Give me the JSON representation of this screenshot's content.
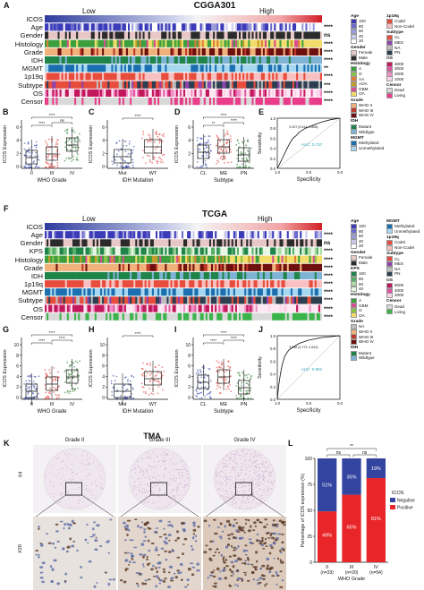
{
  "top": {
    "letter": "A",
    "title": "CGGA301",
    "low": "Low",
    "high": "High",
    "rows": [
      "ICOS",
      "Age",
      "Gender",
      "Histology",
      "Grade",
      "IDH",
      "MGMT",
      "1p19q",
      "Subtype",
      "OS",
      "Censor"
    ],
    "sigs": [
      "",
      "****",
      "ns",
      "****",
      "****",
      "****",
      "**",
      "****",
      "***",
      "****",
      "****"
    ],
    "legend": [
      {
        "title": "Age",
        "items": [
          {
            "label": "100",
            "color": "#3b3bb8"
          },
          {
            "label": "80",
            "color": "#6a6acc"
          },
          {
            "label": "60",
            "color": "#9a9ad9"
          },
          {
            "label": "40",
            "color": "#c9c9ec"
          },
          {
            "label": "20",
            "color": "#ffffff"
          }
        ]
      },
      {
        "title": "Gender",
        "items": [
          {
            "label": "Female",
            "color": "#e8c7c7"
          },
          {
            "label": "Male",
            "color": "#2b2b2b"
          }
        ]
      },
      {
        "title": "Histology",
        "items": [
          {
            "label": "A",
            "color": "#3d9e3d"
          },
          {
            "label": "O",
            "color": "#8bc34a"
          },
          {
            "label": "AA",
            "color": "#e07b39"
          },
          {
            "label": "AOA",
            "color": "#c59d2a"
          },
          {
            "label": "GBM",
            "color": "#d74f8f"
          },
          {
            "label": "OA",
            "color": "#f2dc6a"
          }
        ]
      },
      {
        "title": "Grade",
        "items": [
          {
            "label": "WHO II",
            "color": "#f0b27a"
          },
          {
            "label": "WHO III",
            "color": "#c0392b"
          },
          {
            "label": "WHO IV",
            "color": "#6e0f0f"
          }
        ]
      },
      {
        "title": "IDH",
        "items": [
          {
            "label": "Mutant",
            "color": "#1e8449"
          },
          {
            "label": "Wildtype",
            "color": "#7fb3d5"
          }
        ]
      },
      {
        "title": "MGMT",
        "items": [
          {
            "label": "Methylated",
            "color": "#1a6fb0"
          },
          {
            "label": "Unmethylated",
            "color": "#a8d8f0"
          }
        ]
      }
    ],
    "legend2": [
      {
        "title": "1p19q",
        "items": [
          {
            "label": "Codel",
            "color": "#e74c3c"
          },
          {
            "label": "Non-Codel",
            "color": "#f8c0c0"
          }
        ]
      },
      {
        "title": "Subtype",
        "items": [
          {
            "label": "CL",
            "color": "#e74c3c"
          },
          {
            "label": "MES",
            "color": "#8e44ad"
          },
          {
            "label": "NA",
            "color": "#bdbdbd"
          },
          {
            "label": "PN",
            "color": "#2c3e50"
          }
        ]
      },
      {
        "title": "OS",
        "items": [
          {
            "label": "4000",
            "color": "#c2185b"
          },
          {
            "label": "3000",
            "color": "#e056a0"
          },
          {
            "label": "2000",
            "color": "#f08fc6"
          },
          {
            "label": "1000",
            "color": "#fbd3ea"
          }
        ]
      },
      {
        "title": "Censor",
        "items": [
          {
            "label": "Dead",
            "color": "#d9d9d9"
          },
          {
            "label": "Living",
            "color": "#e93d8a"
          }
        ]
      }
    ]
  },
  "panelsRow1": {
    "B": {
      "letter": "B",
      "ylabel": "ICOS Expression",
      "xlabel": "WHO Grade",
      "cats": [
        "II",
        "III",
        "IV"
      ],
      "ticks": [
        "6",
        "4",
        "2",
        "0"
      ],
      "brackets": [
        "ns",
        "****",
        "****"
      ]
    },
    "C": {
      "letter": "C",
      "ylabel": "ICOS Expression",
      "xlabel": "IDH Mutation",
      "cats": [
        "Mut",
        "WT"
      ],
      "ticks": [
        "6",
        "4",
        "2",
        "0"
      ],
      "brackets": [
        "****"
      ]
    },
    "D": {
      "letter": "D",
      "ylabel": "ICOS Expression",
      "xlabel": "Subtype",
      "cats": [
        "CL",
        "ME",
        "PN"
      ],
      "ticks": [
        "6",
        "4",
        "2",
        "0"
      ],
      "brackets": [
        "****",
        "**",
        "****"
      ]
    },
    "E": {
      "letter": "E",
      "ylabel": "Sensitivity",
      "xlabel": "Specificity",
      "auc": "AUC: 0.737",
      "point": "0.207 (0.514, 0.808)",
      "ticks": [
        "1.0",
        "0.8",
        "0.6",
        "0.4",
        "0.2",
        "0.0"
      ],
      "xticks": [
        "1.0",
        "0.5",
        "0.0"
      ]
    }
  },
  "mid": {
    "letter": "F",
    "title": "TCGA",
    "low": "Low",
    "high": "High",
    "rows": [
      "ICOS",
      "Age",
      "Gender",
      "KPS",
      "Histology",
      "Grade",
      "IDH",
      "1p19q",
      "MGMT",
      "Subtype",
      "OS",
      "Censor"
    ],
    "sigs": [
      "",
      "****",
      "ns",
      "****",
      "****",
      "****",
      "****",
      "****",
      "****",
      "****",
      "****",
      "****"
    ],
    "legend": [
      {
        "title": "Age",
        "items": [
          {
            "label": "100",
            "color": "#3b3bb8"
          },
          {
            "label": "80",
            "color": "#6a6acc"
          },
          {
            "label": "60",
            "color": "#9a9ad9"
          },
          {
            "label": "40",
            "color": "#c9c9ec"
          },
          {
            "label": "20",
            "color": "#ffffff"
          }
        ]
      },
      {
        "title": "Gender",
        "items": [
          {
            "label": "Female",
            "color": "#e8c7c7"
          },
          {
            "label": "Male",
            "color": "#2b2b2b"
          }
        ]
      },
      {
        "title": "KPS",
        "items": [
          {
            "label": "100",
            "color": "#1e8449"
          },
          {
            "label": "80",
            "color": "#58b068"
          },
          {
            "label": "60",
            "color": "#a9dba3"
          },
          {
            "label": "40",
            "color": "#e9f6e6"
          }
        ]
      },
      {
        "title": "Histology",
        "items": [
          {
            "label": "A",
            "color": "#3d9e3d"
          },
          {
            "label": "GBM",
            "color": "#d74f8f"
          },
          {
            "label": "O",
            "color": "#8bc34a"
          },
          {
            "label": "OA",
            "color": "#f2dc6a"
          }
        ]
      },
      {
        "title": "Grade",
        "items": [
          {
            "label": "NA",
            "color": "#bdbdbd"
          },
          {
            "label": "WHO II",
            "color": "#f0b27a"
          },
          {
            "label": "WHO III",
            "color": "#c0392b"
          },
          {
            "label": "WHO IV",
            "color": "#6e0f0f"
          }
        ]
      },
      {
        "title": "IDH",
        "items": [
          {
            "label": "Mutant",
            "color": "#1e8449"
          },
          {
            "label": "Wildtype",
            "color": "#7fb3d5"
          }
        ]
      }
    ],
    "legend2": [
      {
        "title": "MGMT",
        "items": [
          {
            "label": "Methylated",
            "color": "#1a6fb0"
          },
          {
            "label": "Unmethylated",
            "color": "#a8d8f0"
          }
        ]
      },
      {
        "title": "1p19q",
        "items": [
          {
            "label": "Codel",
            "color": "#e74c3c"
          },
          {
            "label": "Non-Codel",
            "color": "#f8c0c0"
          }
        ]
      },
      {
        "title": "Subtype",
        "items": [
          {
            "label": "CL",
            "color": "#e74c3c"
          },
          {
            "label": "MES",
            "color": "#8e44ad"
          },
          {
            "label": "NA",
            "color": "#bdbdbd"
          },
          {
            "label": "PN",
            "color": "#2c3e50"
          }
        ]
      },
      {
        "title": "OS",
        "items": [
          {
            "label": "6000",
            "color": "#c2185b"
          },
          {
            "label": "4000",
            "color": "#e056a0"
          },
          {
            "label": "2000",
            "color": "#fbd3ea"
          }
        ]
      },
      {
        "title": "Censor",
        "items": [
          {
            "label": "Dead",
            "color": "#d9d9d9"
          },
          {
            "label": "Living",
            "color": "#3bb34a"
          }
        ]
      }
    ]
  },
  "panelsRow2": {
    "G": {
      "letter": "G",
      "ylabel": "ICOS Expression",
      "xlabel": "WHO Grade",
      "cats": [
        "II",
        "III",
        "IV"
      ],
      "ticks": [
        "10",
        "8",
        "6",
        "4",
        "2",
        "0"
      ],
      "brackets": [
        "****",
        "****",
        "****"
      ]
    },
    "H": {
      "letter": "H",
      "ylabel": "ICOS Expression",
      "xlabel": "IDH Mutation",
      "cats": [
        "Mut",
        "WT"
      ],
      "ticks": [
        "10",
        "8",
        "6",
        "4",
        "2",
        "0"
      ],
      "brackets": [
        "****"
      ]
    },
    "I": {
      "letter": "I",
      "ylabel": "ICOS Expression",
      "xlabel": "Subtype",
      "cats": [
        "CL",
        "ME",
        "PN"
      ],
      "ticks": [
        "10",
        "8",
        "6",
        "4",
        "2",
        "0"
      ],
      "brackets": [
        "****",
        "****",
        "****"
      ]
    },
    "J": {
      "letter": "J",
      "ylabel": "Sensitivity",
      "xlabel": "Specificity",
      "auc": "AUC: 0.851",
      "point": "3.096 (0.773, 0.812)",
      "ticks": [
        "1.0",
        "0.8",
        "0.6",
        "0.4",
        "0.2",
        "0.0"
      ],
      "xticks": [
        "1.0",
        "0.5",
        "0.0"
      ]
    }
  },
  "tma": {
    "letterK": "K",
    "letterL": "L",
    "title": "TMA",
    "grades": [
      "Grade II",
      "Grade III",
      "Grade IV"
    ],
    "mags": [
      "X4",
      "X20"
    ]
  },
  "chart_data": {
    "type": "bar",
    "stacked": true,
    "categories": [
      "II\n(n=33)",
      "III\n(n=20)",
      "IV\n(n=54)"
    ],
    "cat_labels": [
      "II",
      "III",
      "IV"
    ],
    "cat_n": [
      "(n=33)",
      "(n=20)",
      "(n=54)"
    ],
    "series": [
      {
        "name": "Positive",
        "values": [
          49,
          65,
          81
        ],
        "color": "#e8262a"
      },
      {
        "name": "Negative",
        "values": [
          51,
          35,
          19
        ],
        "color": "#3345a0"
      }
    ],
    "ylabel": "Percentage of ICOS expression (%)",
    "xlabel": "WHO Grade",
    "legend_title": "ICOS",
    "yticks": [
      "100",
      "75",
      "50",
      "25",
      "0"
    ],
    "ylim": [
      0,
      100
    ],
    "sig": [
      "ns",
      "ns",
      "**"
    ],
    "pct_pos": [
      "49%",
      "65%",
      "81%"
    ],
    "pct_neg": [
      "51%",
      "35%",
      "19%"
    ]
  }
}
